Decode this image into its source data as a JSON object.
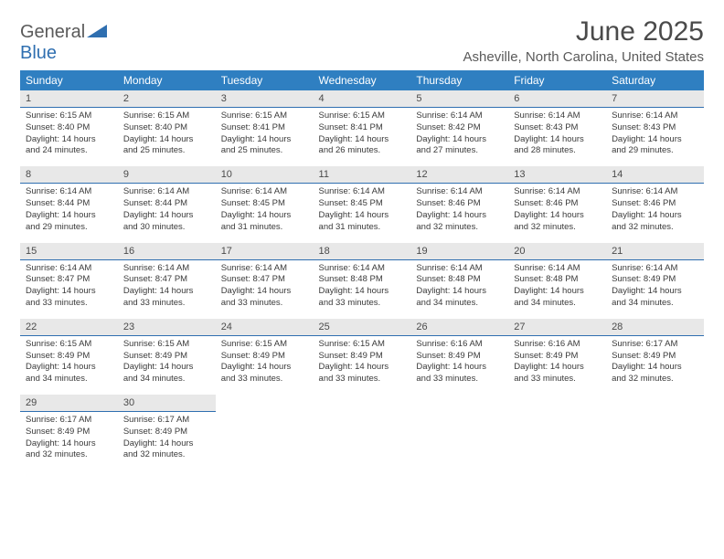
{
  "brand": {
    "part1": "General",
    "part2": "Blue"
  },
  "title": "June 2025",
  "location": "Asheville, North Carolina, United States",
  "colors": {
    "header_bg": "#2f7fc1",
    "header_text": "#ffffff",
    "daynum_bg": "#e8e8e8",
    "daynum_border": "#2f6fb0",
    "body_text": "#3a3a3a",
    "title_text": "#4a4a4a",
    "brand_gray": "#5a5a5a",
    "brand_blue": "#2f6fb0"
  },
  "dow": [
    "Sunday",
    "Monday",
    "Tuesday",
    "Wednesday",
    "Thursday",
    "Friday",
    "Saturday"
  ],
  "weeks": [
    {
      "nums": [
        "1",
        "2",
        "3",
        "4",
        "5",
        "6",
        "7"
      ],
      "cells": [
        {
          "sr": "Sunrise: 6:15 AM",
          "ss": "Sunset: 8:40 PM",
          "dl": "Daylight: 14 hours and 24 minutes."
        },
        {
          "sr": "Sunrise: 6:15 AM",
          "ss": "Sunset: 8:40 PM",
          "dl": "Daylight: 14 hours and 25 minutes."
        },
        {
          "sr": "Sunrise: 6:15 AM",
          "ss": "Sunset: 8:41 PM",
          "dl": "Daylight: 14 hours and 25 minutes."
        },
        {
          "sr": "Sunrise: 6:15 AM",
          "ss": "Sunset: 8:41 PM",
          "dl": "Daylight: 14 hours and 26 minutes."
        },
        {
          "sr": "Sunrise: 6:14 AM",
          "ss": "Sunset: 8:42 PM",
          "dl": "Daylight: 14 hours and 27 minutes."
        },
        {
          "sr": "Sunrise: 6:14 AM",
          "ss": "Sunset: 8:43 PM",
          "dl": "Daylight: 14 hours and 28 minutes."
        },
        {
          "sr": "Sunrise: 6:14 AM",
          "ss": "Sunset: 8:43 PM",
          "dl": "Daylight: 14 hours and 29 minutes."
        }
      ]
    },
    {
      "nums": [
        "8",
        "9",
        "10",
        "11",
        "12",
        "13",
        "14"
      ],
      "cells": [
        {
          "sr": "Sunrise: 6:14 AM",
          "ss": "Sunset: 8:44 PM",
          "dl": "Daylight: 14 hours and 29 minutes."
        },
        {
          "sr": "Sunrise: 6:14 AM",
          "ss": "Sunset: 8:44 PM",
          "dl": "Daylight: 14 hours and 30 minutes."
        },
        {
          "sr": "Sunrise: 6:14 AM",
          "ss": "Sunset: 8:45 PM",
          "dl": "Daylight: 14 hours and 31 minutes."
        },
        {
          "sr": "Sunrise: 6:14 AM",
          "ss": "Sunset: 8:45 PM",
          "dl": "Daylight: 14 hours and 31 minutes."
        },
        {
          "sr": "Sunrise: 6:14 AM",
          "ss": "Sunset: 8:46 PM",
          "dl": "Daylight: 14 hours and 32 minutes."
        },
        {
          "sr": "Sunrise: 6:14 AM",
          "ss": "Sunset: 8:46 PM",
          "dl": "Daylight: 14 hours and 32 minutes."
        },
        {
          "sr": "Sunrise: 6:14 AM",
          "ss": "Sunset: 8:46 PM",
          "dl": "Daylight: 14 hours and 32 minutes."
        }
      ]
    },
    {
      "nums": [
        "15",
        "16",
        "17",
        "18",
        "19",
        "20",
        "21"
      ],
      "cells": [
        {
          "sr": "Sunrise: 6:14 AM",
          "ss": "Sunset: 8:47 PM",
          "dl": "Daylight: 14 hours and 33 minutes."
        },
        {
          "sr": "Sunrise: 6:14 AM",
          "ss": "Sunset: 8:47 PM",
          "dl": "Daylight: 14 hours and 33 minutes."
        },
        {
          "sr": "Sunrise: 6:14 AM",
          "ss": "Sunset: 8:47 PM",
          "dl": "Daylight: 14 hours and 33 minutes."
        },
        {
          "sr": "Sunrise: 6:14 AM",
          "ss": "Sunset: 8:48 PM",
          "dl": "Daylight: 14 hours and 33 minutes."
        },
        {
          "sr": "Sunrise: 6:14 AM",
          "ss": "Sunset: 8:48 PM",
          "dl": "Daylight: 14 hours and 34 minutes."
        },
        {
          "sr": "Sunrise: 6:14 AM",
          "ss": "Sunset: 8:48 PM",
          "dl": "Daylight: 14 hours and 34 minutes."
        },
        {
          "sr": "Sunrise: 6:14 AM",
          "ss": "Sunset: 8:49 PM",
          "dl": "Daylight: 14 hours and 34 minutes."
        }
      ]
    },
    {
      "nums": [
        "22",
        "23",
        "24",
        "25",
        "26",
        "27",
        "28"
      ],
      "cells": [
        {
          "sr": "Sunrise: 6:15 AM",
          "ss": "Sunset: 8:49 PM",
          "dl": "Daylight: 14 hours and 34 minutes."
        },
        {
          "sr": "Sunrise: 6:15 AM",
          "ss": "Sunset: 8:49 PM",
          "dl": "Daylight: 14 hours and 34 minutes."
        },
        {
          "sr": "Sunrise: 6:15 AM",
          "ss": "Sunset: 8:49 PM",
          "dl": "Daylight: 14 hours and 33 minutes."
        },
        {
          "sr": "Sunrise: 6:15 AM",
          "ss": "Sunset: 8:49 PM",
          "dl": "Daylight: 14 hours and 33 minutes."
        },
        {
          "sr": "Sunrise: 6:16 AM",
          "ss": "Sunset: 8:49 PM",
          "dl": "Daylight: 14 hours and 33 minutes."
        },
        {
          "sr": "Sunrise: 6:16 AM",
          "ss": "Sunset: 8:49 PM",
          "dl": "Daylight: 14 hours and 33 minutes."
        },
        {
          "sr": "Sunrise: 6:17 AM",
          "ss": "Sunset: 8:49 PM",
          "dl": "Daylight: 14 hours and 32 minutes."
        }
      ]
    },
    {
      "nums": [
        "29",
        "30",
        "",
        "",
        "",
        "",
        ""
      ],
      "cells": [
        {
          "sr": "Sunrise: 6:17 AM",
          "ss": "Sunset: 8:49 PM",
          "dl": "Daylight: 14 hours and 32 minutes."
        },
        {
          "sr": "Sunrise: 6:17 AM",
          "ss": "Sunset: 8:49 PM",
          "dl": "Daylight: 14 hours and 32 minutes."
        },
        null,
        null,
        null,
        null,
        null
      ]
    }
  ]
}
